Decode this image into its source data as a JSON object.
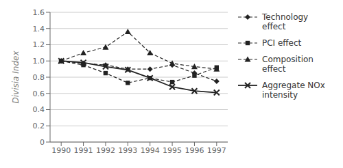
{
  "chart_data": {
    "type": "line",
    "x": [
      1990,
      1991,
      1992,
      1993,
      1994,
      1995,
      1996,
      1997
    ],
    "xlim": [
      1989.5,
      1997.5
    ],
    "xticks": [
      1990,
      1991,
      1992,
      1993,
      1994,
      1995,
      1996,
      1997
    ],
    "y_label": "Divisia Index",
    "ylim": [
      0,
      1.6
    ],
    "yticks": [
      0,
      0.2,
      0.4,
      0.6,
      0.8,
      {
        "value": 1.0,
        "label": "1.0"
      },
      1.2,
      1.4,
      1.6
    ],
    "grid": true,
    "legend": "right",
    "series": [
      {
        "name": "Technology effect",
        "color": "#222222",
        "marker": "diamond",
        "line_style": "dashed",
        "values": [
          1.0,
          0.97,
          0.95,
          0.9,
          0.9,
          0.95,
          0.85,
          0.75
        ]
      },
      {
        "name": "PCI effect",
        "color": "#222222",
        "marker": "square",
        "line_style": "dashed",
        "values": [
          1.0,
          0.95,
          0.85,
          0.73,
          0.79,
          0.74,
          0.82,
          0.92
        ]
      },
      {
        "name": "Composition effect",
        "color": "#222222",
        "marker": "triangle",
        "line_style": "dashed",
        "values": [
          1.0,
          1.1,
          1.17,
          1.36,
          1.1,
          0.97,
          0.93,
          0.9
        ]
      },
      {
        "name": "Aggregate NOx\nintensity",
        "color": "#222222",
        "marker": "x",
        "line_style": "solid",
        "values": [
          1.0,
          0.98,
          0.93,
          0.89,
          0.79,
          0.68,
          0.63,
          0.61
        ]
      }
    ]
  }
}
